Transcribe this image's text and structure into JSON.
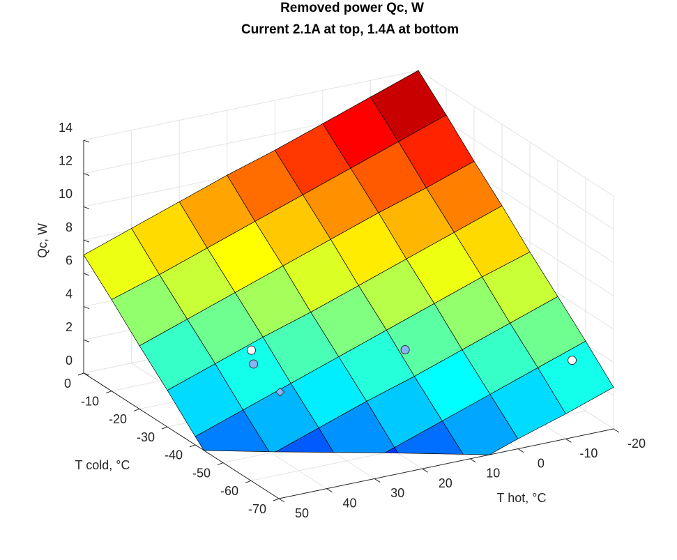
{
  "chart_data": {
    "type": "surface",
    "title": "Removed power Qc, W",
    "subtitle": "Current 2.1A at top, 1.4A at bottom",
    "xlabel": "T hot, °C",
    "ylabel": "T cold, °C",
    "zlabel": "Qc, W",
    "x": [
      -20,
      -10,
      0,
      10,
      20,
      30,
      40,
      50
    ],
    "y": [
      -70,
      -60,
      -50,
      -40,
      -30,
      -20,
      -10,
      0
    ],
    "z": [
      [
        2.5,
        1.5,
        0.6,
        -0.4,
        -1.4,
        -2.4,
        -3.4,
        -4.4
      ],
      [
        4.2,
        3.2,
        2.2,
        1.2,
        0.2,
        -0.8,
        -1.8,
        -2.7
      ],
      [
        5.8,
        4.8,
        3.8,
        2.8,
        1.9,
        0.9,
        -0.1,
        -1.1
      ],
      [
        7.4,
        6.5,
        5.5,
        4.5,
        3.5,
        2.5,
        1.5,
        0.5
      ],
      [
        9.1,
        8.1,
        7.1,
        6.1,
        5.1,
        4.2,
        3.2,
        2.2
      ],
      [
        10.7,
        9.7,
        8.8,
        7.8,
        6.8,
        5.8,
        4.8,
        3.8
      ],
      [
        12.4,
        11.4,
        10.4,
        9.4,
        8.4,
        7.4,
        6.4,
        5.5
      ],
      [
        14,
        13,
        12,
        11,
        10.1,
        9.1,
        8.1,
        7.1
      ]
    ],
    "xlim": [
      -20,
      50
    ],
    "ylim": [
      -70,
      0
    ],
    "zlim": [
      0,
      14
    ],
    "xticks": [
      -20,
      -10,
      0,
      10,
      20,
      30,
      40,
      50
    ],
    "yticks": [
      -70,
      -60,
      -50,
      -40,
      -30,
      -20,
      -10,
      0
    ],
    "zticks": [
      0,
      2,
      4,
      6,
      8,
      10,
      12,
      14
    ],
    "colormap": "jet",
    "grid": true,
    "points": [
      {
        "x": 33,
        "y": -31,
        "z": 3.7,
        "color": "#ffffff",
        "marker": "o"
      },
      {
        "x": 34,
        "y": -33.5,
        "z": 3.2,
        "color": "#8ab4f8",
        "marker": "o"
      },
      {
        "x": 32.6,
        "y": -40.6,
        "z": 2.2,
        "color": "#8ab4f8",
        "marker": "d"
      },
      {
        "x": 9,
        "y": -45,
        "z": 3.8,
        "color": "#8ab4f8",
        "marker": "o"
      },
      {
        "x": -16,
        "y": -62,
        "z": 3.5,
        "color": "#ffffff",
        "marker": "o"
      }
    ]
  }
}
